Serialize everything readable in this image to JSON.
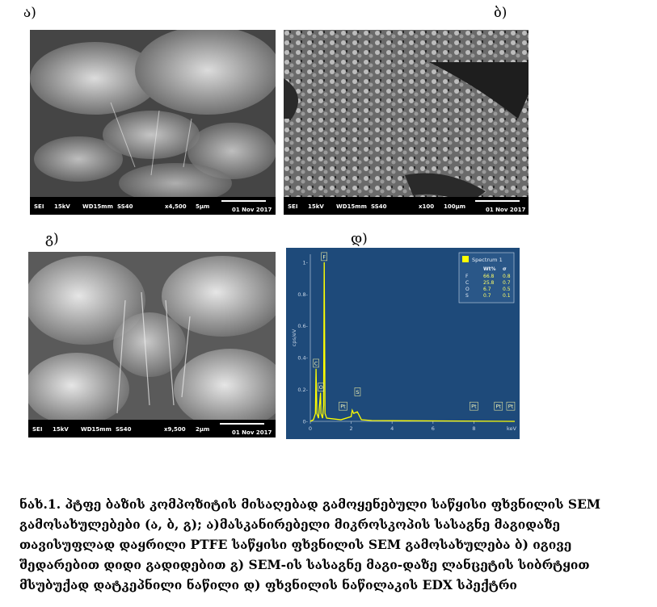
{
  "panel_labels": {
    "a": "ა)",
    "b": "ბ)",
    "g": "გ)",
    "d": "დ)"
  },
  "sem_panels": [
    {
      "id": "a",
      "mode": "SEI",
      "kv": "15kV",
      "wd": "WD15mm",
      "ss": "SS40",
      "mag": "x4,500",
      "scale": "5μm",
      "date": "01 Nov 2017"
    },
    {
      "id": "b",
      "mode": "SEI",
      "kv": "15kV",
      "wd": "WD15mm",
      "ss": "SS40",
      "mag": "x100",
      "scale": "100μm",
      "date": "01 Nov 2017"
    },
    {
      "id": "g",
      "mode": "SEI",
      "kv": "15kV",
      "wd": "WD15mm",
      "ss": "SS40",
      "mag": "x9,500",
      "scale": "2μm",
      "date": "01 Nov 2017"
    }
  ],
  "chart_data": {
    "type": "line",
    "title": "",
    "xlabel": "keV",
    "ylabel": "cps/eV",
    "xlim": [
      0,
      10
    ],
    "ylim": [
      0,
      1.05
    ],
    "x_ticks": [
      "0",
      "2",
      "4",
      "6",
      "8"
    ],
    "y_ticks": [
      "0",
      "0.2",
      "0.4",
      "0.6",
      "0.8",
      "1"
    ],
    "y_tick_prefix": "-",
    "background_color": "#1e4a7a",
    "line_color": "#ffff00",
    "series": [
      {
        "name": "Spectrum 1",
        "values": [
          [
            0,
            0
          ],
          [
            0.15,
            0.01
          ],
          [
            0.25,
            0.05
          ],
          [
            0.28,
            0.33
          ],
          [
            0.32,
            0.05
          ],
          [
            0.4,
            0.02
          ],
          [
            0.5,
            0.18
          ],
          [
            0.52,
            0.05
          ],
          [
            0.6,
            0.02
          ],
          [
            0.65,
            0.1
          ],
          [
            0.68,
            1.0
          ],
          [
            0.72,
            0.05
          ],
          [
            0.8,
            0.02
          ],
          [
            1.5,
            0.01
          ],
          [
            2.0,
            0.03
          ],
          [
            2.05,
            0.07
          ],
          [
            2.12,
            0.05
          ],
          [
            2.3,
            0.06
          ],
          [
            2.5,
            0.01
          ],
          [
            3,
            0.005
          ],
          [
            10,
            0
          ]
        ]
      }
    ],
    "peaks": [
      {
        "label": "C",
        "keV": 0.28,
        "cps": 0.33
      },
      {
        "label": "O",
        "keV": 0.52,
        "cps": 0.18
      },
      {
        "label": "F",
        "keV": 0.68,
        "cps": 1.0
      },
      {
        "label": "Pt",
        "keV": 1.6,
        "cps": 0.06
      },
      {
        "label": "S",
        "keV": 2.31,
        "cps": 0.15
      },
      {
        "label": "Pt",
        "keV": 8.0,
        "cps": 0.06
      },
      {
        "label": "Pt",
        "keV": 9.2,
        "cps": 0.06
      },
      {
        "label": "Pt",
        "keV": 9.8,
        "cps": 0.06
      }
    ],
    "legend": {
      "position": "top-right",
      "title": "Spectrum 1",
      "header": [
        "",
        "Wt%",
        "σ"
      ],
      "rows": [
        [
          "F",
          "66.8",
          "0.8"
        ],
        [
          "C",
          "25.8",
          "0.7"
        ],
        [
          "O",
          "6.7",
          "0.5"
        ],
        [
          "S",
          "0.7",
          "0.1"
        ]
      ]
    }
  },
  "caption_lines": [
    "ნახ.1. პტფე ბაზის კომპოზიტის მისაღებად გამოყენებული საწყისი ფხვნილის SEM",
    "გამოსახულებები (ა, ბ, გ); ა)მასკანირებელი მიკროსკოპის სასაგნე მაგიდაზე",
    "თავისუფლად დაყრილი PTFE  საწყისი ფხვნილის SEM გამოსახულება ბ) იგივე",
    "შედარებით დიდი გადიდებით გ) SEM-ის სასაგნე მაგი-დაზე ლანცეტის სიბრტყით",
    "მსუბუქად დატკეპნილი ნაწილი დ) ფხვნილის ნაწილაკის EDX სპექტრი"
  ]
}
